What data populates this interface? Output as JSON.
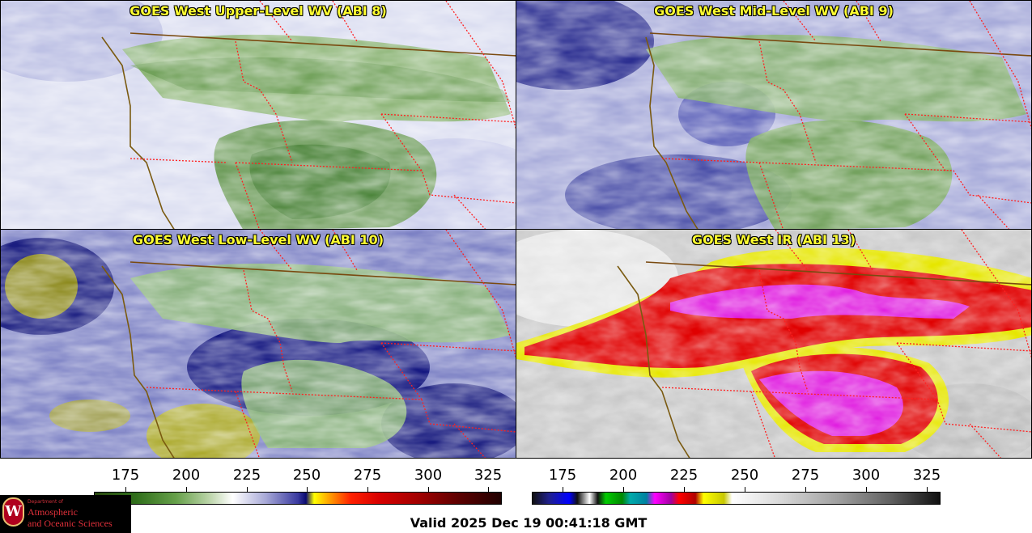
{
  "panels": [
    {
      "title": "GOES West Upper-Level WV (ABI 8)",
      "channel": "ABI 8"
    },
    {
      "title": "GOES West Mid-Level WV (ABI 9)",
      "channel": "ABI 9"
    },
    {
      "title": "GOES West Low-Level WV (ABI 10)",
      "channel": "ABI 10"
    },
    {
      "title": "GOES West IR (ABI 13)",
      "channel": "ABI 13"
    }
  ],
  "colorbar_wv": {
    "ticks": [
      "175",
      "200",
      "225",
      "250",
      "275",
      "300",
      "325"
    ]
  },
  "colorbar_ir": {
    "ticks": [
      "175",
      "200",
      "225",
      "250",
      "275",
      "300",
      "325"
    ]
  },
  "logo": {
    "line1": "Department of",
    "line2": "Atmospheric",
    "line3": "and Oceanic Sciences",
    "seal_letter": "W"
  },
  "valid_time": "Valid 2025 Dec 19 00:41:18 GMT",
  "colors": {
    "title": "#ffff30",
    "coast": "#7a5a10",
    "border": "#ff2020"
  }
}
